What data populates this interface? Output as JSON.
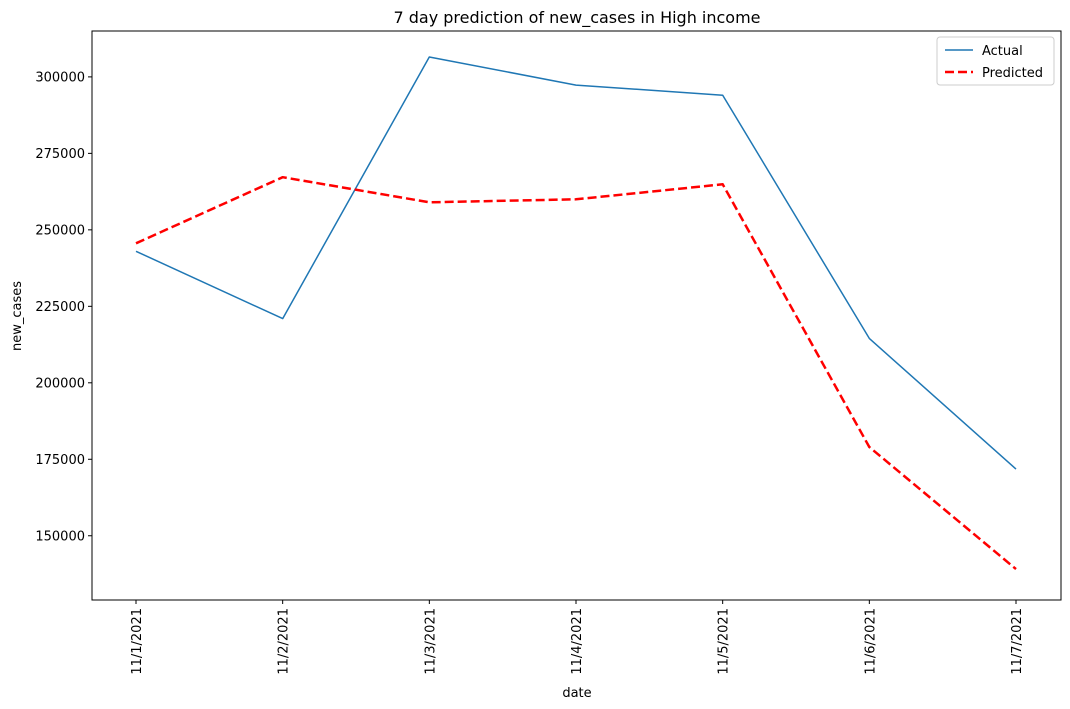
{
  "chart_data": {
    "type": "line",
    "title": "7 day prediction of new_cases in High income",
    "xlabel": "date",
    "ylabel": "new_cases",
    "categories": [
      "11/1/2021",
      "11/2/2021",
      "11/3/2021",
      "11/4/2021",
      "11/5/2021",
      "11/6/2021",
      "11/7/2021"
    ],
    "yticks": [
      150000,
      175000,
      200000,
      225000,
      250000,
      275000,
      300000
    ],
    "ylim": [
      129000,
      315000
    ],
    "grid": false,
    "legend_position": "top-right",
    "series": [
      {
        "name": "Actual",
        "color": "#1f77b4",
        "style": "solid",
        "values": [
          243000,
          221000,
          306500,
          297300,
          294000,
          214500,
          171800
        ]
      },
      {
        "name": "Predicted",
        "color": "#ff0000",
        "style": "dashed",
        "values": [
          245600,
          267200,
          259000,
          260000,
          264900,
          179000,
          139100
        ]
      }
    ]
  }
}
